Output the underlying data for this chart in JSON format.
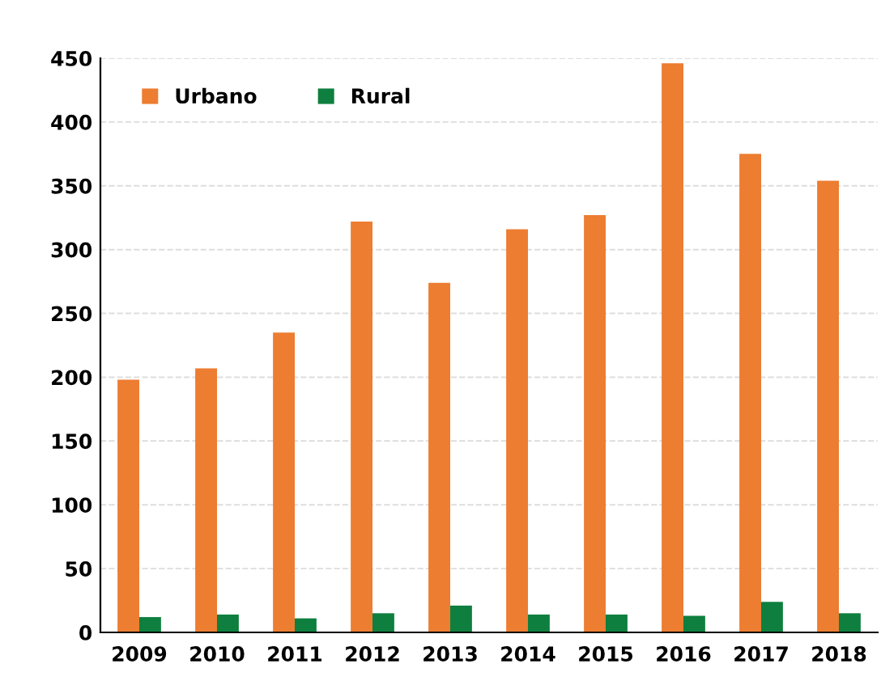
{
  "chart_data": {
    "type": "bar",
    "categories": [
      "2009",
      "2010",
      "2011",
      "2012",
      "2013",
      "2014",
      "2015",
      "2016",
      "2017",
      "2018"
    ],
    "series": [
      {
        "name": "Urbano",
        "color": "#ed7d31",
        "values": [
          198,
          207,
          235,
          322,
          274,
          316,
          327,
          446,
          375,
          354
        ]
      },
      {
        "name": "Rural",
        "color": "#0e7f3e",
        "values": [
          12,
          14,
          11,
          15,
          21,
          14,
          14,
          13,
          24,
          15
        ]
      }
    ],
    "ylim": [
      0,
      450
    ],
    "yticks": [
      0,
      50,
      100,
      150,
      200,
      250,
      300,
      350,
      400,
      450
    ],
    "grid": "y",
    "legend": "top left"
  }
}
